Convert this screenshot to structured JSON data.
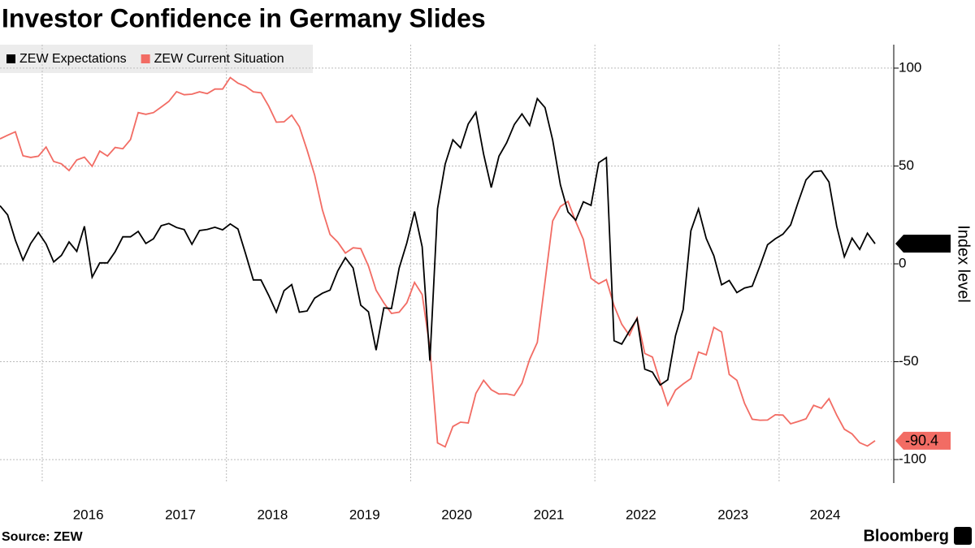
{
  "chart_data": {
    "type": "line",
    "title": "Investor Confidence in Germany Slides",
    "y_axis_label": "Index level",
    "source": "Source: ZEW",
    "brand": "Bloomberg",
    "categories": [
      null,
      null,
      null,
      null,
      null,
      null,
      null,
      null,
      null,
      null,
      null,
      "2016",
      null,
      null,
      null,
      null,
      null,
      null,
      null,
      null,
      null,
      null,
      null,
      "2017",
      null,
      null,
      null,
      null,
      null,
      null,
      null,
      null,
      null,
      null,
      null,
      "2018",
      null,
      null,
      null,
      null,
      null,
      null,
      null,
      null,
      null,
      null,
      null,
      "2019",
      null,
      null,
      null,
      null,
      null,
      null,
      null,
      null,
      null,
      null,
      null,
      "2020",
      null,
      null,
      null,
      null,
      null,
      null,
      null,
      null,
      null,
      null,
      null,
      "2021",
      null,
      null,
      null,
      null,
      null,
      null,
      null,
      null,
      null,
      null,
      null,
      "2022",
      null,
      null,
      null,
      null,
      null,
      null,
      null,
      null,
      null,
      null,
      null,
      "2023",
      null,
      null,
      null,
      null,
      null,
      null,
      null,
      null,
      null,
      null,
      null,
      "2024",
      null,
      null,
      null,
      null,
      null,
      null,
      null
    ],
    "series": [
      {
        "name": "ZEW Expectations",
        "color": "#000000",
        "values": [
          29.7,
          25.0,
          12.1,
          1.9,
          10.4,
          16.1,
          10.2,
          1.0,
          4.3,
          11.2,
          6.4,
          19.2,
          -6.8,
          0.5,
          0.5,
          6.2,
          13.8,
          13.8,
          16.6,
          10.4,
          12.8,
          19.5,
          20.6,
          18.6,
          17.5,
          10.0,
          17.0,
          17.6,
          18.7,
          17.4,
          20.4,
          17.8,
          5.1,
          -8.2,
          -8.2,
          -16.1,
          -24.7,
          -13.7,
          -10.6,
          -24.7,
          -24.1,
          -17.5,
          -15.0,
          -13.4,
          -3.6,
          3.1,
          -2.1,
          -21.1,
          -24.5,
          -44.1,
          -22.5,
          -22.8,
          -2.1,
          10.7,
          26.7,
          8.7,
          -49.5,
          28.2,
          51.0,
          63.4,
          59.3,
          71.5,
          77.4,
          56.1,
          39.0,
          55.0,
          61.8,
          71.2,
          76.6,
          70.7,
          84.4,
          79.8,
          63.3,
          40.4,
          26.5,
          22.3,
          31.7,
          29.9,
          51.7,
          54.3,
          -39.3,
          -41.0,
          -34.3,
          -28.0,
          -53.8,
          -55.3,
          -61.9,
          -59.2,
          -36.7,
          -23.3,
          16.9,
          28.1,
          13.0,
          4.1,
          -10.7,
          -8.5,
          -14.7,
          -12.3,
          -11.4,
          -1.1,
          9.8,
          12.8,
          15.2,
          19.9,
          31.7,
          42.9,
          47.1,
          47.5,
          41.8,
          19.2,
          3.6,
          13.1,
          7.4,
          15.7,
          10.3
        ]
      },
      {
        "name": "ZEW Current Situation",
        "color": "#f26c64",
        "values": [
          63.9,
          65.7,
          67.5,
          55.2,
          54.4,
          55.0,
          59.7,
          52.3,
          51.1,
          47.7,
          53.1,
          54.5,
          49.8,
          57.6,
          55.1,
          59.5,
          58.8,
          63.5,
          77.3,
          76.4,
          77.3,
          80.1,
          83.0,
          88.0,
          86.4,
          86.7,
          87.9,
          87.0,
          89.3,
          89.3,
          95.2,
          92.3,
          90.7,
          87.9,
          87.4,
          80.6,
          72.4,
          72.6,
          76.0,
          70.1,
          58.2,
          45.3,
          27.6,
          15.0,
          11.1,
          5.5,
          8.2,
          7.8,
          -1.1,
          -13.5,
          -19.9,
          -25.3,
          -24.7,
          -19.9,
          -9.5,
          -15.7,
          -43.1,
          -91.5,
          -93.5,
          -83.1,
          -80.9,
          -81.3,
          -66.2,
          -59.5,
          -64.3,
          -66.5,
          -66.4,
          -67.2,
          -61.0,
          -48.8,
          -40.1,
          -9.1,
          21.9,
          29.3,
          31.9,
          21.6,
          12.5,
          -7.4,
          -10.2,
          -8.1,
          -21.4,
          -30.8,
          -36.5,
          -27.6,
          -45.8,
          -47.6,
          -60.5,
          -72.2,
          -64.5,
          -61.4,
          -58.6,
          -45.1,
          -46.5,
          -32.5,
          -34.8,
          -56.5,
          -59.5,
          -71.3,
          -79.4,
          -79.9,
          -79.8,
          -77.1,
          -77.3,
          -81.7,
          -80.5,
          -79.2,
          -72.3,
          -73.8,
          -68.9,
          -77.3,
          -84.5,
          -86.9,
          -91.4,
          -93.1,
          -90.4
        ]
      }
    ],
    "ylim": [
      -112,
      112
    ],
    "yticks": [
      100,
      50,
      0,
      -50,
      -100
    ],
    "grid": true,
    "legend": "top-left"
  }
}
